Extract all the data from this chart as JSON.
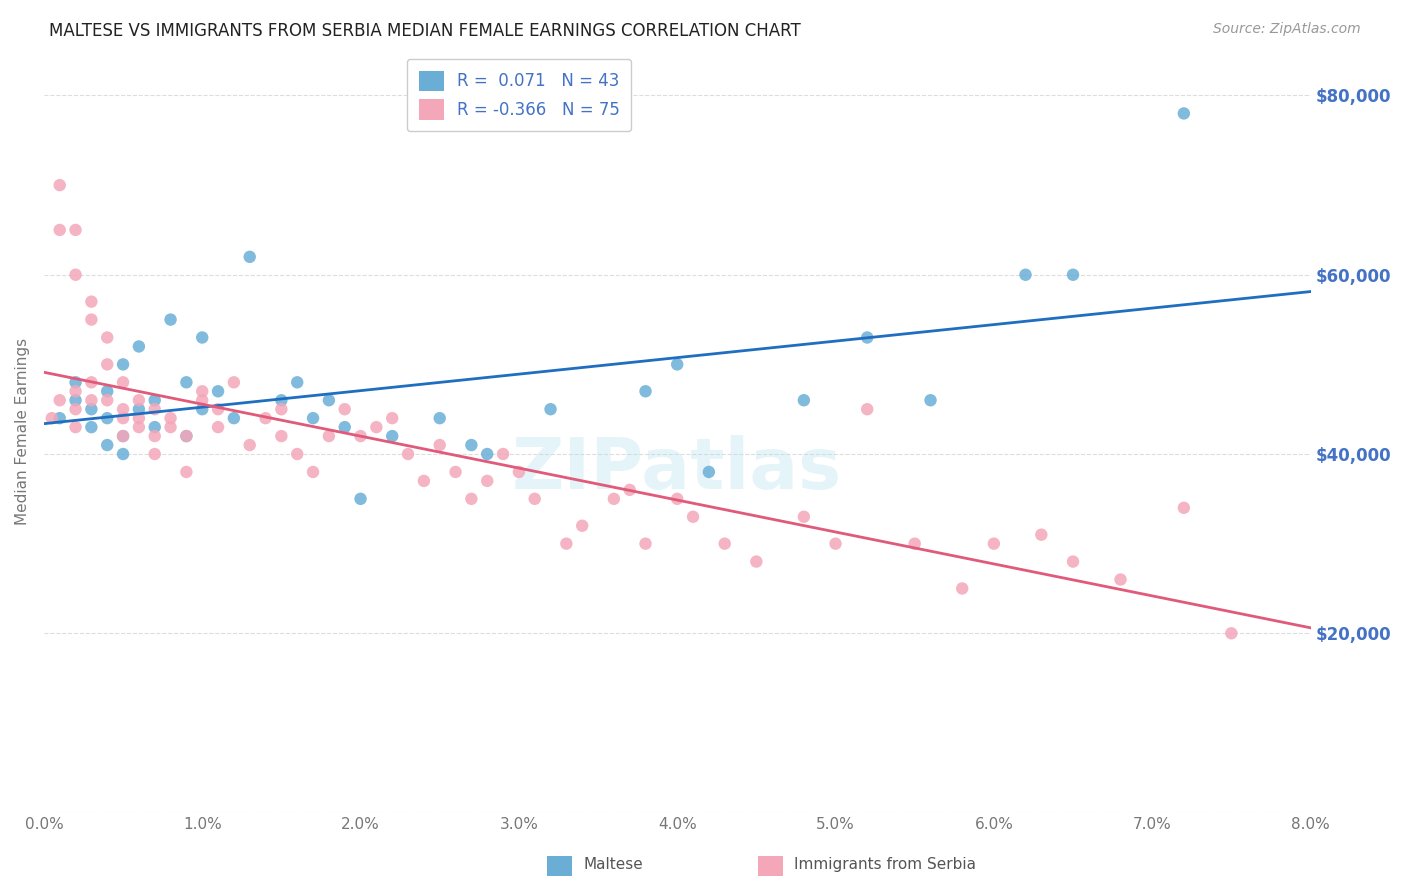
{
  "title": "MALTESE VS IMMIGRANTS FROM SERBIA MEDIAN FEMALE EARNINGS CORRELATION CHART",
  "source": "Source: ZipAtlas.com",
  "ylabel": "Median Female Earnings",
  "x_ticks": [
    0.0,
    0.01,
    0.02,
    0.03,
    0.04,
    0.05,
    0.06,
    0.07,
    0.08
  ],
  "x_tick_labels": [
    "0.0%",
    "1.0%",
    "2.0%",
    "3.0%",
    "4.0%",
    "5.0%",
    "6.0%",
    "7.0%",
    "8.0%"
  ],
  "y_ticks": [
    0,
    20000,
    40000,
    60000,
    80000
  ],
  "y_tick_labels": [
    "",
    "$20,000",
    "$40,000",
    "$60,000",
    "$80,000"
  ],
  "xlim": [
    0.0,
    0.08
  ],
  "ylim": [
    0,
    85000
  ],
  "legend_entry1": "R =  0.071   N = 43",
  "legend_entry2": "R = -0.366   N = 75",
  "legend_label1": "Maltese",
  "legend_label2": "Immigrants from Serbia",
  "blue_color": "#6aaed6",
  "pink_color": "#f4a7b9",
  "blue_line_color": "#1f6ebf",
  "pink_line_color": "#e05a7a",
  "text_color": "#4472c4",
  "watermark": "ZIPatlas",
  "background_color": "#ffffff",
  "grid_color": "#dddddd",
  "maltese_x": [
    0.001,
    0.002,
    0.002,
    0.003,
    0.003,
    0.004,
    0.004,
    0.004,
    0.005,
    0.005,
    0.005,
    0.006,
    0.006,
    0.007,
    0.007,
    0.008,
    0.009,
    0.009,
    0.01,
    0.01,
    0.011,
    0.012,
    0.013,
    0.015,
    0.016,
    0.017,
    0.018,
    0.019,
    0.02,
    0.022,
    0.025,
    0.027,
    0.028,
    0.032,
    0.038,
    0.04,
    0.042,
    0.048,
    0.052,
    0.056,
    0.062,
    0.065,
    0.072
  ],
  "maltese_y": [
    44000,
    46000,
    48000,
    43000,
    45000,
    41000,
    44000,
    47000,
    40000,
    42000,
    50000,
    45000,
    52000,
    43000,
    46000,
    55000,
    42000,
    48000,
    45000,
    53000,
    47000,
    44000,
    62000,
    46000,
    48000,
    44000,
    46000,
    43000,
    35000,
    42000,
    44000,
    41000,
    40000,
    45000,
    47000,
    50000,
    38000,
    46000,
    53000,
    46000,
    60000,
    60000,
    78000
  ],
  "serbia_x": [
    0.0005,
    0.001,
    0.001,
    0.001,
    0.002,
    0.002,
    0.002,
    0.002,
    0.002,
    0.003,
    0.003,
    0.003,
    0.003,
    0.004,
    0.004,
    0.004,
    0.005,
    0.005,
    0.005,
    0.005,
    0.006,
    0.006,
    0.006,
    0.007,
    0.007,
    0.007,
    0.008,
    0.008,
    0.009,
    0.009,
    0.01,
    0.01,
    0.011,
    0.011,
    0.012,
    0.013,
    0.014,
    0.015,
    0.015,
    0.016,
    0.017,
    0.018,
    0.019,
    0.02,
    0.021,
    0.022,
    0.023,
    0.024,
    0.025,
    0.026,
    0.027,
    0.028,
    0.029,
    0.03,
    0.031,
    0.033,
    0.034,
    0.036,
    0.037,
    0.038,
    0.04,
    0.041,
    0.043,
    0.045,
    0.048,
    0.05,
    0.052,
    0.055,
    0.058,
    0.06,
    0.063,
    0.065,
    0.068,
    0.072,
    0.075
  ],
  "serbia_y": [
    44000,
    46000,
    65000,
    70000,
    43000,
    45000,
    47000,
    60000,
    65000,
    55000,
    57000,
    48000,
    46000,
    50000,
    53000,
    46000,
    44000,
    42000,
    48000,
    45000,
    44000,
    46000,
    43000,
    45000,
    42000,
    40000,
    44000,
    43000,
    38000,
    42000,
    46000,
    47000,
    45000,
    43000,
    48000,
    41000,
    44000,
    45000,
    42000,
    40000,
    38000,
    42000,
    45000,
    42000,
    43000,
    44000,
    40000,
    37000,
    41000,
    38000,
    35000,
    37000,
    40000,
    38000,
    35000,
    30000,
    32000,
    35000,
    36000,
    30000,
    35000,
    33000,
    30000,
    28000,
    33000,
    30000,
    45000,
    30000,
    25000,
    30000,
    31000,
    28000,
    26000,
    34000,
    20000
  ]
}
